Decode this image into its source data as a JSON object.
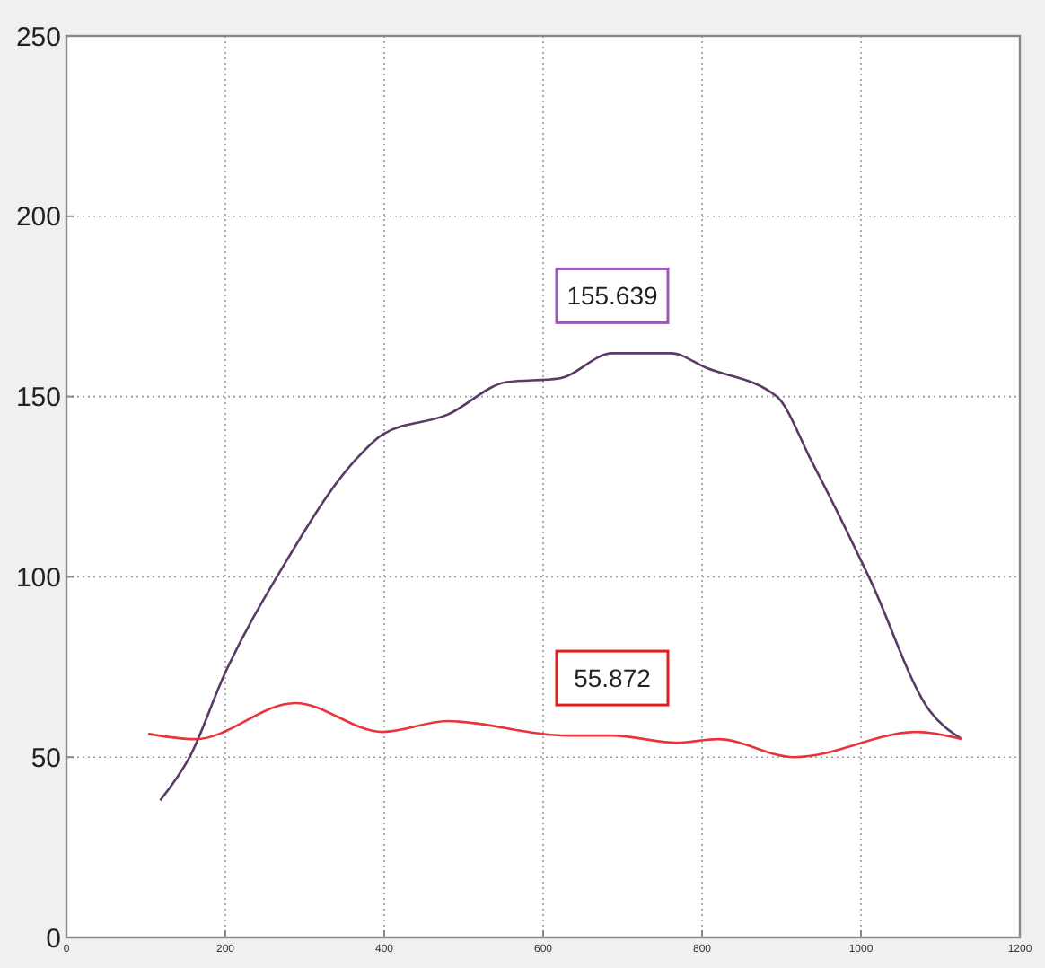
{
  "chart_data": {
    "type": "line",
    "x": [
      118,
      155,
      199,
      273,
      362,
      398,
      480,
      554,
      620,
      687,
      761,
      805,
      894,
      938,
      1012,
      1086,
      1127
    ],
    "series": [
      {
        "color": "#5a3a66",
        "values": [
          38,
          50,
          73,
          103,
          132,
          139.5,
          145,
          154,
          155,
          162,
          162,
          158,
          150,
          132,
          99,
          63,
          55
        ]
      },
      {
        "color": "#e8343a",
        "x": [
          103,
          162,
          288,
          398,
          480,
          628,
          687,
          768,
          820,
          916,
          1071,
          1127
        ],
        "values": [
          56.5,
          55,
          65,
          57,
          60,
          56,
          56,
          54,
          55,
          50,
          57,
          55
        ]
      }
    ],
    "annotations": [
      {
        "text": "155.639",
        "x": 687,
        "y": 162
      },
      {
        "text": "55.872",
        "x": 687,
        "y": 56
      }
    ],
    "xlim": [
      0,
      1200
    ],
    "xticks": [
      0,
      200,
      400,
      600,
      800,
      1000,
      1200
    ],
    "ylim": [
      0,
      250
    ],
    "yticks": [
      0,
      50,
      100,
      150,
      200,
      250
    ],
    "grid": true,
    "marker": "none",
    "line_style": "solid"
  }
}
